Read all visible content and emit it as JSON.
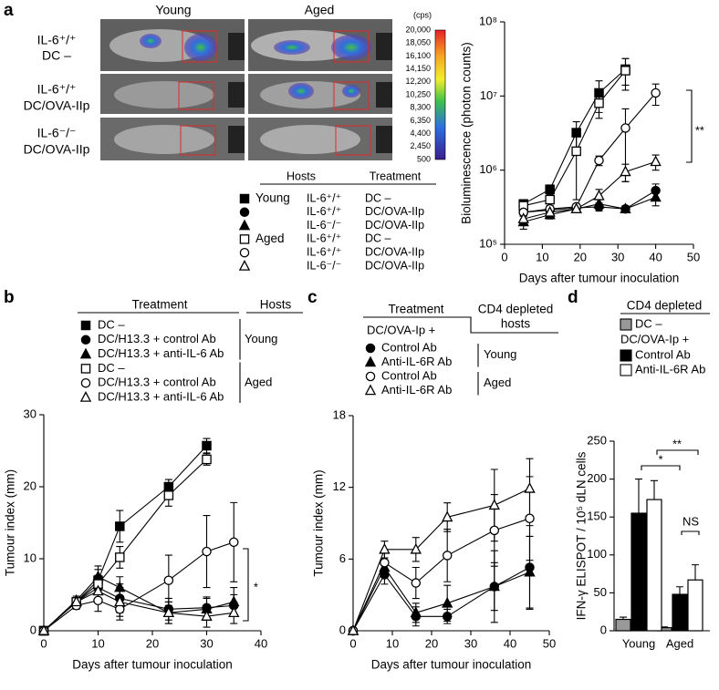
{
  "imaging": {
    "columns": [
      "Young",
      "Aged"
    ],
    "rows": [
      [
        "IL-6⁺/⁺",
        "DC –"
      ],
      [
        "IL-6⁺/⁺",
        "DC/OVA-IIp"
      ],
      [
        "IL-6⁻/⁻",
        "DC/OVA-IIp"
      ]
    ],
    "colorbar": {
      "unit": "(cps)",
      "labels": [
        "20,000",
        "18,050",
        "16,100",
        "14,150",
        "12,200",
        "10,250",
        "8,300",
        "6,350",
        "4,400",
        "2,450",
        "500"
      ]
    }
  },
  "chart_data": [
    {
      "panel": "a",
      "type": "line",
      "x": [
        5,
        12,
        19,
        25,
        32,
        40
      ],
      "xlim": [
        0,
        50
      ],
      "xticks": [
        0,
        10,
        20,
        30,
        40,
        50
      ],
      "ylim": [
        100000,
        100000000
      ],
      "log_y": true,
      "yticks": [
        {
          "value": 100000,
          "label": "10⁵"
        },
        {
          "value": 1000000,
          "label": "10⁶"
        },
        {
          "value": 10000000,
          "label": "10⁷"
        },
        {
          "value": 100000000,
          "label": "10⁸"
        }
      ],
      "xlabel": "Days after tumour inoculation",
      "ylabel": "Bioluminescence (photon counts)",
      "legend": {
        "headers": [
          "Hosts",
          "Treatment"
        ],
        "groups": [
          "Young",
          "Aged"
        ],
        "hosts": [
          "IL-6⁺/⁺",
          "IL-6⁺/⁺",
          "IL-6⁻/⁻",
          "IL-6⁺/⁺",
          "IL-6⁺/⁺",
          "IL-6⁻/⁻"
        ],
        "treatments": [
          "DC –",
          "DC/OVA-IIp",
          "DC/OVA-IIp",
          "DC –",
          "DC/OVA-IIp",
          "DC/OVA-IIp"
        ]
      },
      "series": [
        {
          "marker": "square",
          "color": "#000000",
          "values": [
            350000,
            550000,
            3200000,
            11000000,
            23000000,
            null
          ],
          "errors": [
            30000,
            80000,
            1300000,
            5000000,
            9000000,
            null
          ]
        },
        {
          "marker": "circle",
          "color": "#000000",
          "values": [
            270000,
            290000,
            310000,
            320000,
            300000,
            530000
          ],
          "errors": [
            30000,
            30000,
            30000,
            40000,
            20000,
            120000
          ]
        },
        {
          "marker": "triangle",
          "color": "#000000",
          "values": [
            200000,
            250000,
            300000,
            350000,
            300000,
            430000
          ],
          "errors": [
            40000,
            30000,
            30000,
            50000,
            30000,
            100000
          ]
        },
        {
          "marker": "square",
          "color": "#ffffff",
          "values": [
            330000,
            400000,
            1800000,
            8000000,
            22000000,
            null
          ],
          "errors": [
            30000,
            50000,
            1400000,
            3000000,
            10000000,
            null
          ]
        },
        {
          "marker": "circle",
          "color": "#ffffff",
          "values": [
            270000,
            300000,
            320000,
            1350000,
            3700000,
            11000000
          ],
          "errors": [
            30000,
            30000,
            30000,
            200000,
            3000000,
            3500000
          ]
        },
        {
          "marker": "triangle",
          "color": "#ffffff",
          "values": [
            220000,
            270000,
            300000,
            450000,
            950000,
            1300000
          ],
          "errors": [
            40000,
            30000,
            30000,
            100000,
            250000,
            300000
          ]
        }
      ],
      "annotations": [
        "**"
      ]
    },
    {
      "panel": "b",
      "type": "line",
      "x": [
        0,
        6,
        10,
        14,
        23,
        30,
        35
      ],
      "xlim": [
        0,
        40
      ],
      "xticks": [
        0,
        10,
        20,
        30,
        40
      ],
      "ylim": [
        0,
        30
      ],
      "yticks": [
        0,
        10,
        20,
        30
      ],
      "xlabel": "Days after tumour inoculation",
      "ylabel": "Tumour index (mm)",
      "legend": {
        "headers": [
          "Treatment",
          "Hosts"
        ],
        "groups": [
          "Young",
          "Aged"
        ]
      },
      "series": [
        {
          "name": "DC –",
          "marker": "square",
          "color": "#000000",
          "values": [
            0,
            4,
            7,
            14.5,
            20,
            25.7,
            null
          ],
          "errors": [
            0.3,
            0.5,
            1.5,
            2.2,
            1,
            1,
            null
          ]
        },
        {
          "name": "DC/H13.3 + control Ab",
          "marker": "circle",
          "color": "#000000",
          "values": [
            0,
            4,
            6,
            4.5,
            3,
            3.2,
            3.5
          ],
          "errors": [
            0.3,
            0.5,
            1.5,
            2,
            1.5,
            1.5,
            1.5
          ]
        },
        {
          "name": "DC/H13.3 + anti-IL-6 Ab",
          "marker": "triangle",
          "color": "#000000",
          "values": [
            0,
            4.2,
            7.5,
            6,
            2.5,
            3,
            4
          ],
          "errors": [
            0.3,
            0.6,
            1.5,
            1.5,
            1.5,
            1.5,
            2
          ]
        },
        {
          "name": "DC –",
          "marker": "square",
          "color": "#ffffff",
          "values": [
            0,
            4,
            6.5,
            10.2,
            18.8,
            23.8,
            null
          ],
          "errors": [
            0.3,
            0.5,
            1.2,
            1.5,
            1.5,
            0.8,
            null
          ]
        },
        {
          "name": "DC/H13.3 + control Ab",
          "marker": "circle",
          "color": "#ffffff",
          "values": [
            0,
            3.5,
            4.2,
            3,
            7,
            11,
            12.3
          ],
          "errors": [
            0.3,
            0.5,
            1.5,
            1.5,
            3.5,
            5,
            5.5
          ]
        },
        {
          "name": "DC/H13.3 + anti-IL-6 Ab",
          "marker": "triangle",
          "color": "#ffffff",
          "values": [
            0,
            4,
            5.5,
            4,
            2.5,
            2,
            2.5
          ],
          "errors": [
            0.3,
            0.5,
            1.5,
            2,
            1.5,
            1.5,
            1.5
          ]
        }
      ],
      "annotations": [
        "*"
      ]
    },
    {
      "panel": "c",
      "type": "line",
      "x": [
        0,
        8,
        16,
        24,
        36,
        45
      ],
      "xlim": [
        0,
        50
      ],
      "xticks": [
        0,
        10,
        20,
        30,
        40,
        50
      ],
      "ylim": [
        0,
        18
      ],
      "yticks": [
        0,
        6,
        12,
        18
      ],
      "xlabel": "Days after tumour inoculation",
      "ylabel": "Tumour index (mm)",
      "legend": {
        "header": "Treatment",
        "subheader": "DC/OVA-Ip +",
        "hosts_header": [
          "CD4 depleted",
          "hosts"
        ],
        "groups": [
          "Young",
          "Aged"
        ]
      },
      "series": [
        {
          "name": "Control Ab",
          "marker": "circle",
          "color": "#000000",
          "values": [
            0,
            4.7,
            1.2,
            1.2,
            3.7,
            5.3
          ],
          "errors": [
            0.2,
            0.8,
            0.8,
            0.6,
            3,
            3.5
          ]
        },
        {
          "name": "Anti-IL-6R Ab",
          "marker": "triangle",
          "color": "#000000",
          "values": [
            0,
            5.3,
            1.5,
            2.3,
            3.7,
            4.9
          ],
          "errors": [
            0.2,
            0.8,
            0.8,
            1.5,
            2,
            3
          ]
        },
        {
          "name": "Control Ab",
          "marker": "circle",
          "color": "#ffffff",
          "values": [
            0,
            5.7,
            4,
            6.3,
            8.4,
            9.4
          ],
          "errors": [
            0.2,
            0.8,
            1.3,
            2.2,
            3,
            3.5
          ]
        },
        {
          "name": "Anti-IL-6R Ab",
          "marker": "triangle",
          "color": "#ffffff",
          "values": [
            0,
            6.8,
            6.8,
            9.5,
            10.5,
            11.9
          ],
          "errors": [
            0.2,
            0.7,
            1,
            1.2,
            3,
            2.5
          ]
        }
      ]
    },
    {
      "panel": "d",
      "type": "bar",
      "categories": [
        "Young",
        "Aged"
      ],
      "ylim": [
        0,
        250
      ],
      "yticks": [
        0,
        50,
        100,
        150,
        200,
        250
      ],
      "ylabel": "IFN-γ ELISPOT / 10⁵ dLN cells",
      "legend": {
        "header": "CD4 depleted",
        "subheader": "DC/OVA-Ip +"
      },
      "series": [
        {
          "name": "DC –",
          "color": "#999999",
          "values": [
            15,
            4
          ],
          "errors": [
            3,
            1
          ]
        },
        {
          "name": "Control Ab",
          "color": "#000000",
          "values": [
            155,
            48
          ],
          "errors": [
            45,
            10
          ]
        },
        {
          "name": "Anti-IL-6R Ab",
          "color": "#ffffff",
          "values": [
            173,
            67
          ],
          "errors": [
            25,
            20
          ]
        }
      ],
      "annotations": [
        "**",
        "*",
        "NS"
      ]
    }
  ]
}
